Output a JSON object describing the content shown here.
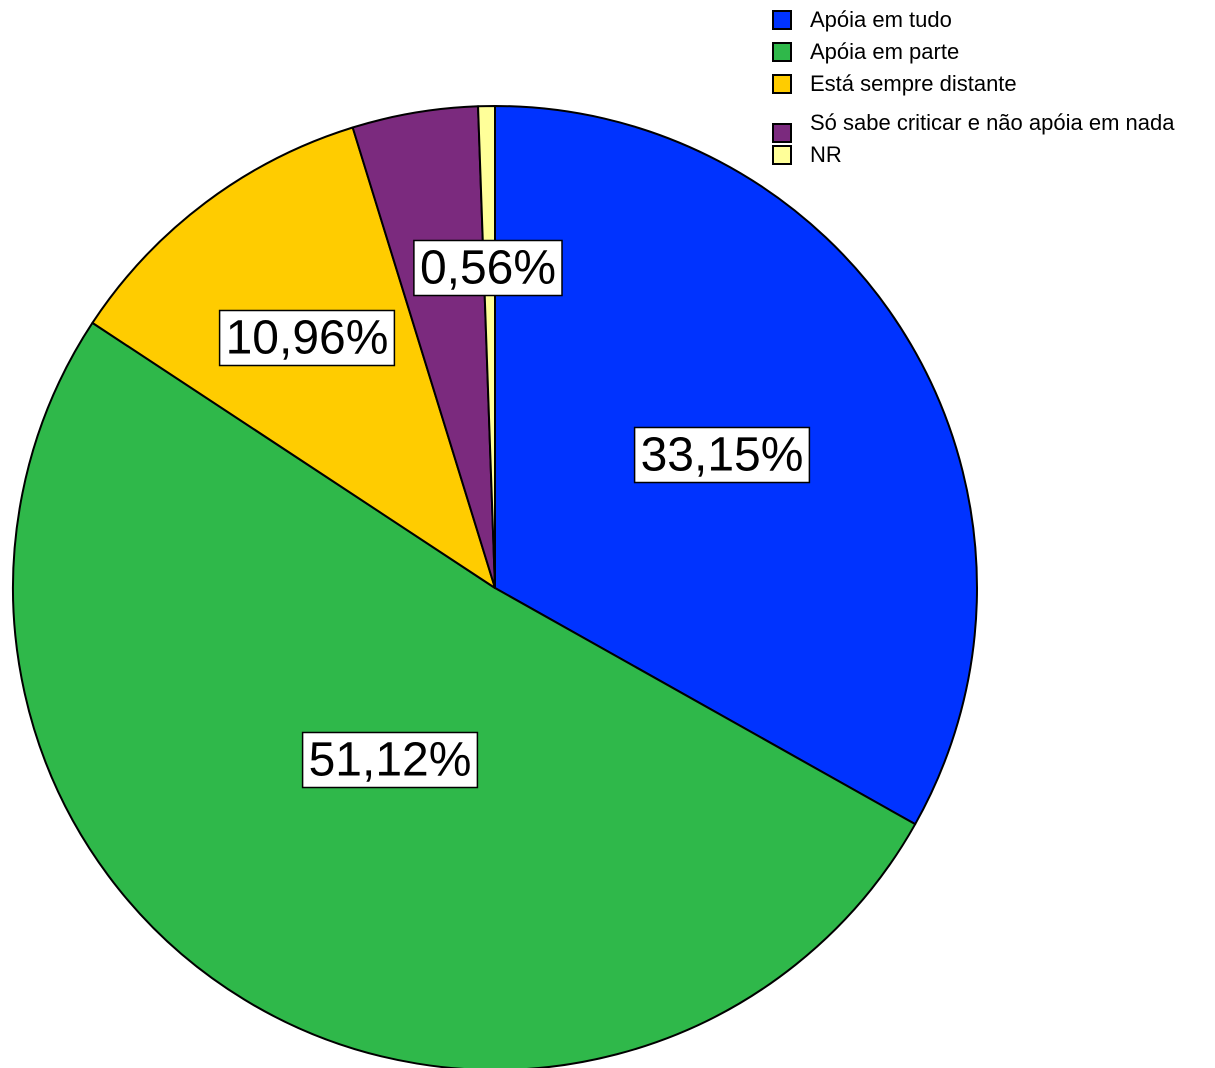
{
  "chart_data": {
    "type": "pie",
    "title": "",
    "slices": [
      {
        "name": "Apóia em tudo",
        "value": 33.15,
        "label": "33,15%",
        "color": "#0033FF"
      },
      {
        "name": "Apóia em parte",
        "value": 51.12,
        "label": "51,12%",
        "color": "#2FB84A"
      },
      {
        "name": "Está sempre distante",
        "value": 10.96,
        "label": "10,96%",
        "color": "#FFCC00"
      },
      {
        "name": "Só sabe criticar e não apóia em nada",
        "value": 4.21,
        "label": "",
        "color": "#7B2A7E"
      },
      {
        "name": "NR",
        "value": 0.56,
        "label": "0,56%",
        "color": "#FFFF99"
      }
    ],
    "start_angle_deg": 0,
    "direction": "clockwise",
    "legend_placement": "top-right"
  }
}
